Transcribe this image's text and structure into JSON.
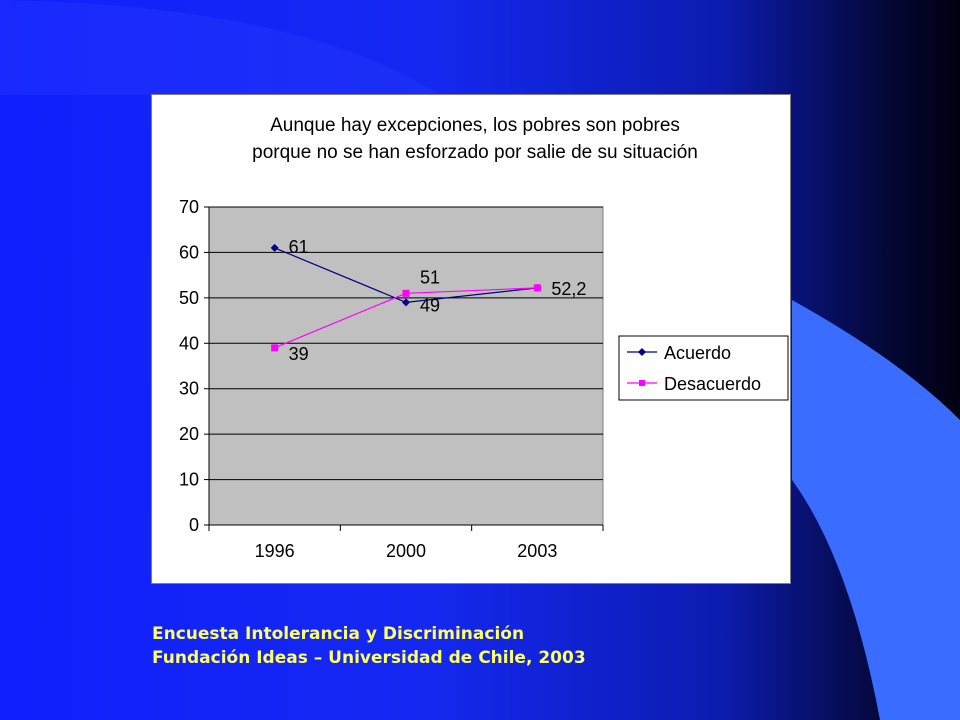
{
  "chart_data": {
    "type": "line",
    "title_lines": [
      "Aunque hay excepciones, los pobres son pobres",
      "porque no se han esforzado por salie de su situación"
    ],
    "categories": [
      "1996",
      "2000",
      "2003"
    ],
    "ylim": [
      0,
      70
    ],
    "yticks": [
      0,
      10,
      20,
      30,
      40,
      50,
      60,
      70
    ],
    "grid": true,
    "legend_position": "right",
    "plot_background": "#c0c0c0",
    "series": [
      {
        "name": "Acuerdo",
        "values": [
          61,
          49,
          52.2
        ],
        "labels": [
          "61",
          "49",
          "52,2"
        ],
        "color": "#000080",
        "marker": "diamond"
      },
      {
        "name": "Desacuerdo",
        "values": [
          39,
          51,
          52.2
        ],
        "labels": [
          "39",
          "51",
          ""
        ],
        "color": "#ff00ff",
        "marker": "square"
      }
    ]
  },
  "footer": {
    "line1": "Encuesta Intolerancia y Discriminación",
    "line2": "Fundación Ideas – Universidad de Chile, 2003"
  },
  "colors": {
    "accent_yellow": "#ffff66",
    "light_blue_shape": "#3a6cff"
  }
}
